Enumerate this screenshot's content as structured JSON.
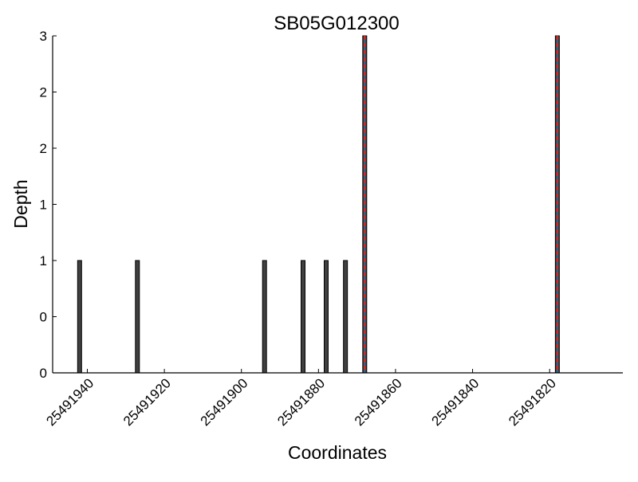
{
  "chart_data": {
    "type": "bar",
    "title": "SB05G012300",
    "xlabel": "Coordinates",
    "ylabel": "Depth",
    "x_direction": "descending",
    "xlim": [
      25491949,
      25491801
    ],
    "ylim": [
      0,
      3
    ],
    "x_ticks": [
      25491940,
      25491920,
      25491900,
      25491880,
      25491860,
      25491840,
      25491820
    ],
    "y_ticks": [
      0,
      0.5,
      1,
      1.5,
      2,
      2.5,
      3
    ],
    "y_tick_labels": [
      "0",
      "0",
      "1",
      "1",
      "2",
      "2",
      "3"
    ],
    "grid": false,
    "legend": "none",
    "bars": [
      {
        "x": 25491942,
        "value": 1
      },
      {
        "x": 25491927,
        "value": 1
      },
      {
        "x": 25491894,
        "value": 1
      },
      {
        "x": 25491884,
        "value": 1
      },
      {
        "x": 25491878,
        "value": 1
      },
      {
        "x": 25491873,
        "value": 1
      },
      {
        "x": 25491868,
        "value": 3,
        "highlight": true
      },
      {
        "x": 25491818,
        "value": 3,
        "highlight": true
      }
    ],
    "colors": {
      "bar_fill": "#404040",
      "bar_edge": "#000000",
      "highlight_line": "#d62728",
      "highlight_accent": "#1f77b4",
      "axis": "#000000"
    }
  }
}
